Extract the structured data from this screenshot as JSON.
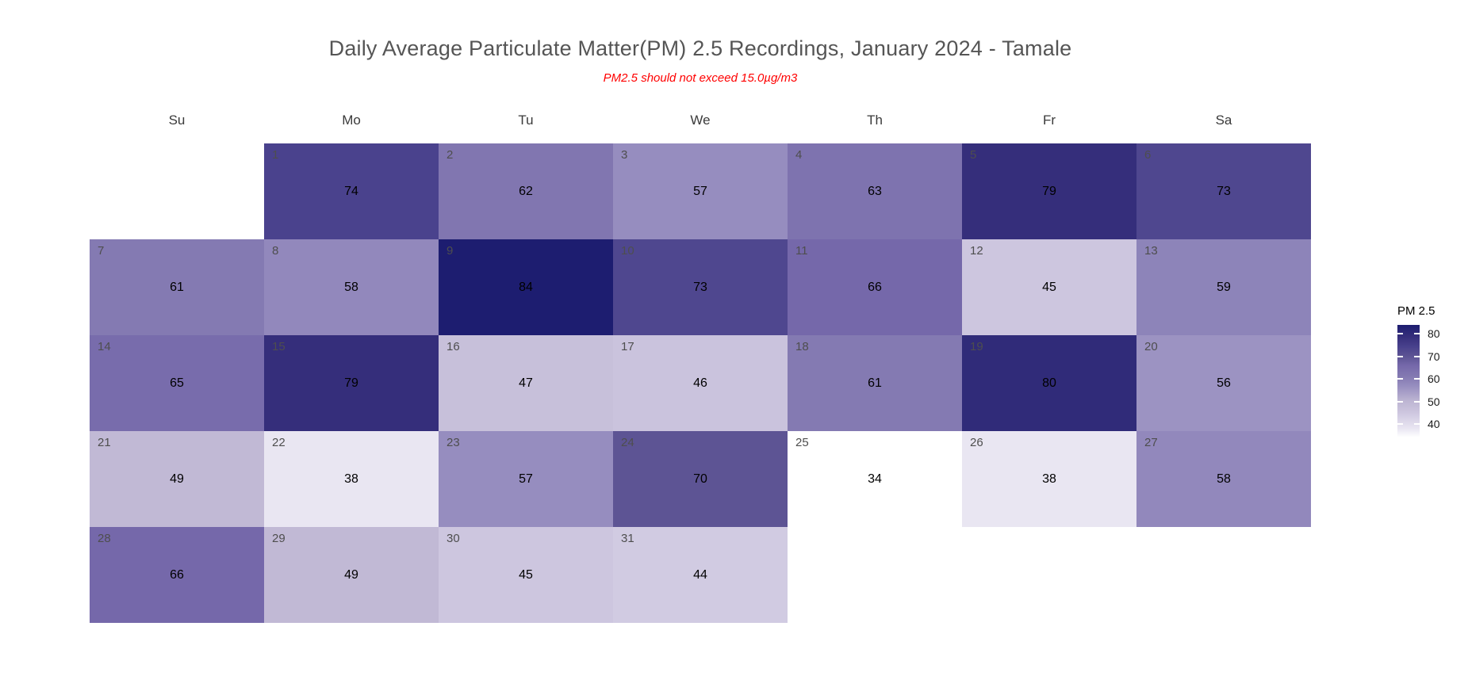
{
  "chart_data": {
    "type": "heatmap",
    "title": "Daily Average Particulate Matter(PM) 2.5 Recordings, January 2024 - Tamale",
    "subtitle": "PM2.5 should not exceed 15.0µg/m3",
    "subtitle_color": "#ff0000",
    "weekday_labels": [
      "Su",
      "Mo",
      "Tu",
      "We",
      "Th",
      "Fr",
      "Sa"
    ],
    "weeks": [
      [
        {
          "day": 1,
          "col": 1,
          "value": 74
        },
        {
          "day": 2,
          "col": 2,
          "value": 62
        },
        {
          "day": 3,
          "col": 3,
          "value": 57
        },
        {
          "day": 4,
          "col": 4,
          "value": 63
        },
        {
          "day": 5,
          "col": 5,
          "value": 79
        },
        {
          "day": 6,
          "col": 6,
          "value": 73
        }
      ],
      [
        {
          "day": 7,
          "col": 0,
          "value": 61
        },
        {
          "day": 8,
          "col": 1,
          "value": 58
        },
        {
          "day": 9,
          "col": 2,
          "value": 84
        },
        {
          "day": 10,
          "col": 3,
          "value": 73
        },
        {
          "day": 11,
          "col": 4,
          "value": 66
        },
        {
          "day": 12,
          "col": 5,
          "value": 45
        },
        {
          "day": 13,
          "col": 6,
          "value": 59
        }
      ],
      [
        {
          "day": 14,
          "col": 0,
          "value": 65
        },
        {
          "day": 15,
          "col": 1,
          "value": 79
        },
        {
          "day": 16,
          "col": 2,
          "value": 47
        },
        {
          "day": 17,
          "col": 3,
          "value": 46
        },
        {
          "day": 18,
          "col": 4,
          "value": 61
        },
        {
          "day": 19,
          "col": 5,
          "value": 80
        },
        {
          "day": 20,
          "col": 6,
          "value": 56
        }
      ],
      [
        {
          "day": 21,
          "col": 0,
          "value": 49
        },
        {
          "day": 22,
          "col": 1,
          "value": 38
        },
        {
          "day": 23,
          "col": 2,
          "value": 57
        },
        {
          "day": 24,
          "col": 3,
          "value": 70
        },
        {
          "day": 25,
          "col": 4,
          "value": 34
        },
        {
          "day": 26,
          "col": 5,
          "value": 38
        },
        {
          "day": 27,
          "col": 6,
          "value": 58
        }
      ],
      [
        {
          "day": 28,
          "col": 0,
          "value": 66
        },
        {
          "day": 29,
          "col": 1,
          "value": 49
        },
        {
          "day": 30,
          "col": 2,
          "value": 45
        },
        {
          "day": 31,
          "col": 3,
          "value": 44
        }
      ]
    ],
    "legend": {
      "title": "PM 2.5",
      "ticks": [
        80,
        70,
        60,
        50,
        40
      ],
      "domain": [
        34,
        84
      ]
    },
    "palette": [
      {
        "value": 34,
        "color": "#ffffff"
      },
      {
        "value": 38,
        "color": "#e9e6f2"
      },
      {
        "value": 45,
        "color": "#cdc6df"
      },
      {
        "value": 50,
        "color": "#beb6d3"
      },
      {
        "value": 57,
        "color": "#968dbf"
      },
      {
        "value": 61,
        "color": "#847ab2"
      },
      {
        "value": 66,
        "color": "#7568aa"
      },
      {
        "value": 70,
        "color": "#5d5494"
      },
      {
        "value": 74,
        "color": "#4a428d"
      },
      {
        "value": 79,
        "color": "#352e7b"
      },
      {
        "value": 84,
        "color": "#1d1d70"
      }
    ]
  }
}
